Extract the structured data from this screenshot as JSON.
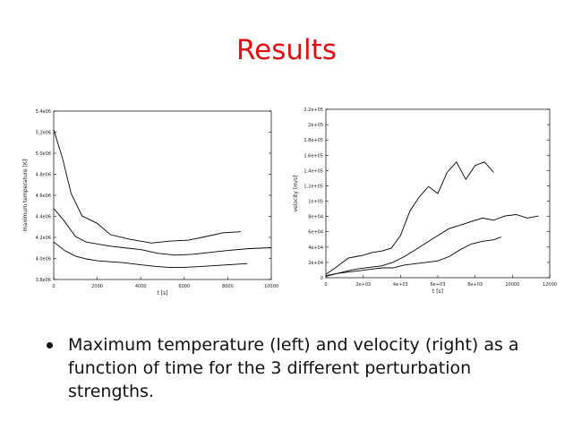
{
  "slide": {
    "title": "Results",
    "bullets": [
      "Maximum temperature (left) and velocity (right) as a function of time for the 3 different perturbation strengths."
    ]
  },
  "colors": {
    "title": "#e01010",
    "text": "#111111",
    "lines": "#000000"
  },
  "chart_data": [
    {
      "type": "line",
      "title": "",
      "xlabel": "t [s]",
      "ylabel": "maximum temperature [K]",
      "xlim": [
        0,
        10000
      ],
      "ylim": [
        3800000,
        5600000
      ],
      "x_ticks": [
        "0",
        "2000",
        "4000",
        "6000",
        "8000",
        "10000"
      ],
      "y_ticks": [
        "3.8e06",
        "4.0e06",
        "4.2e06",
        "4.4e06",
        "4.6e06",
        "4.8e06",
        "5.0e06",
        "5.2e06",
        "5.4e06"
      ],
      "grid": false,
      "series": [
        {
          "x": [
            0,
            400,
            800,
            1300,
            2000,
            2600,
            3500,
            4500,
            5300,
            6200,
            7000,
            7800,
            8600
          ],
          "values": [
            5400000,
            5100000,
            4720000,
            4480000,
            4400000,
            4280000,
            4230000,
            4190000,
            4210000,
            4220000,
            4260000,
            4300000,
            4310000
          ]
        },
        {
          "x": [
            0,
            500,
            1000,
            1500,
            2000,
            2500,
            3200,
            4000,
            4800,
            5600,
            6400,
            7200,
            8000,
            9000,
            10000
          ],
          "values": [
            4560000,
            4420000,
            4260000,
            4200000,
            4180000,
            4160000,
            4140000,
            4120000,
            4080000,
            4060000,
            4070000,
            4090000,
            4110000,
            4130000,
            4140000
          ]
        },
        {
          "x": [
            0,
            500,
            1000,
            1500,
            2000,
            2600,
            3200,
            3900,
            4700,
            5300,
            6000,
            6800,
            7500,
            8200,
            8900
          ],
          "values": [
            4200000,
            4110000,
            4050000,
            4020000,
            4000000,
            3990000,
            3980000,
            3960000,
            3940000,
            3930000,
            3930000,
            3940000,
            3950000,
            3960000,
            3970000
          ]
        }
      ]
    },
    {
      "type": "line",
      "title": "",
      "xlabel": "t [s]",
      "ylabel": "velocity [m/s]",
      "xlim": [
        0,
        12000
      ],
      "ylim": [
        0,
        240000
      ],
      "x_ticks": [
        "0",
        "2e+03",
        "4e+03",
        "6e+03",
        "8e+03",
        "10000",
        "12000"
      ],
      "y_ticks": [
        "0",
        "2e+04",
        "4e+04",
        "6e+04",
        "8e+04",
        "1e+05",
        "1.2e+05",
        "1.4e+05",
        "1.6e+05",
        "1.8e+05",
        "2e+05",
        "2.2e+05"
      ],
      "grid": false,
      "series": [
        {
          "x": [
            0,
            400,
            800,
            1200,
            1600,
            2000,
            2500,
            3000,
            3500,
            4000,
            4500,
            5000,
            5500,
            6000,
            6500,
            7000,
            7500,
            8000,
            8500,
            9000
          ],
          "values": [
            5000,
            12000,
            20000,
            28000,
            30000,
            32000,
            36000,
            38000,
            42000,
            60000,
            95000,
            115000,
            130000,
            120000,
            150000,
            165000,
            140000,
            160000,
            165000,
            150000
          ]
        },
        {
          "x": [
            0,
            600,
            1200,
            1800,
            2400,
            3000,
            3600,
            4200,
            4800,
            5400,
            6000,
            6600,
            7200,
            7800,
            8400,
            9000,
            9600,
            10200,
            10800,
            11400
          ],
          "values": [
            3000,
            6000,
            10000,
            13000,
            15000,
            17000,
            22000,
            30000,
            40000,
            50000,
            60000,
            70000,
            75000,
            80000,
            85000,
            82000,
            88000,
            90000,
            85000,
            88000
          ]
        },
        {
          "x": [
            0,
            600,
            1200,
            1800,
            2400,
            3000,
            3600,
            4200,
            4800,
            5400,
            6000,
            6600,
            7200,
            7800,
            8400,
            9000,
            9400
          ],
          "values": [
            2000,
            6000,
            8000,
            10000,
            12000,
            14000,
            14000,
            18000,
            20000,
            22000,
            24000,
            30000,
            40000,
            48000,
            52000,
            54000,
            58000
          ]
        }
      ]
    }
  ]
}
